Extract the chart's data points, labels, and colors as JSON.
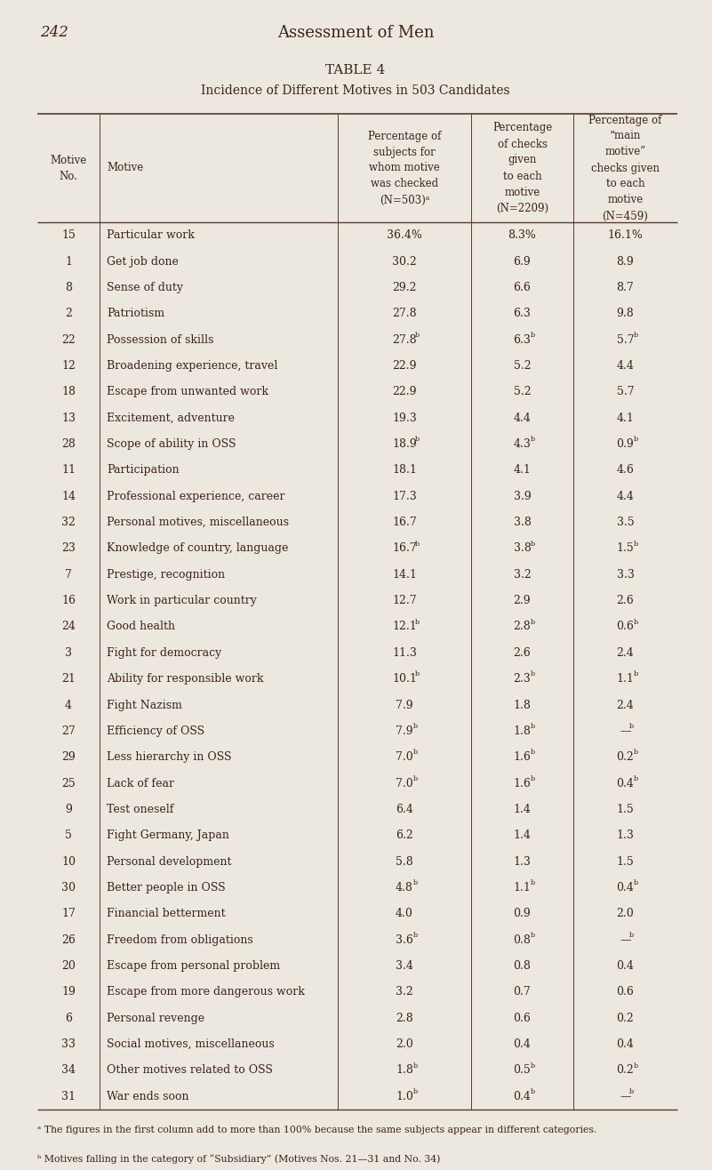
{
  "page_number": "242",
  "book_title": "Assessment of Men",
  "table_title": "TABLE 4",
  "table_subtitle": "Incidence of Different Motives in 503 Candidates",
  "header_col0": "Motive\nNo.",
  "header_col1": "Motive",
  "header_col2": "Percentage of\nsubjects for\nwhom motive\nwas checked\n(N=503)ᵃ",
  "header_col3": "Percentage\nof checks\ngiven\nto each\nmotive\n(N=2209)",
  "header_col4": "Percentage of\n“main\nmotive”\nchecks given\nto each\nmotive\n(N=459)",
  "rows": [
    [
      "15",
      "Particular work",
      "36.4%",
      "8.3%",
      "16.1%"
    ],
    [
      "1",
      "Get job done",
      "30.2",
      "6.9",
      "8.9"
    ],
    [
      "8",
      "Sense of duty",
      "29.2",
      "6.6",
      "8.7"
    ],
    [
      "2",
      "Patriotism",
      "27.8",
      "6.3",
      "9.8"
    ],
    [
      "22",
      "Possession of skills",
      "27.8b",
      "6.3b",
      "5.7b"
    ],
    [
      "12",
      "Broadening experience, travel",
      "22.9",
      "5.2",
      "4.4"
    ],
    [
      "18",
      "Escape from unwanted work",
      "22.9",
      "5.2",
      "5.7"
    ],
    [
      "13",
      "Excitement, adventure",
      "19.3",
      "4.4",
      "4.1"
    ],
    [
      "28",
      "Scope of ability in OSS",
      "18.9b",
      "4.3b",
      "0.9b"
    ],
    [
      "11",
      "Participation",
      "18.1",
      "4.1",
      "4.6"
    ],
    [
      "14",
      "Professional experience, career",
      "17.3",
      "3.9",
      "4.4"
    ],
    [
      "32",
      "Personal motives, miscellaneous",
      "16.7",
      "3.8",
      "3.5"
    ],
    [
      "23",
      "Knowledge of country, language",
      "16.7b",
      "3.8b",
      "1.5b"
    ],
    [
      "7",
      "Prestige, recognition",
      "14.1",
      "3.2",
      "3.3"
    ],
    [
      "16",
      "Work in particular country",
      "12.7",
      "2.9",
      "2.6"
    ],
    [
      "24",
      "Good health",
      "12.1b",
      "2.8b",
      "0.6b"
    ],
    [
      "3",
      "Fight for democracy",
      "11.3",
      "2.6",
      "2.4"
    ],
    [
      "21",
      "Ability for responsible work",
      "10.1b",
      "2.3b",
      "1.1b"
    ],
    [
      "4",
      "Fight Nazism",
      "7.9",
      "1.8",
      "2.4"
    ],
    [
      "27",
      "Efficiency of OSS",
      "7.9b",
      "1.8b",
      "—b"
    ],
    [
      "29",
      "Less hierarchy in OSS",
      "7.0b",
      "1.6b",
      "0.2b"
    ],
    [
      "25",
      "Lack of fear",
      "7.0b",
      "1.6b",
      "0.4b"
    ],
    [
      "9",
      "Test oneself",
      "6.4",
      "1.4",
      "1.5"
    ],
    [
      "5",
      "Fight Germany, Japan",
      "6.2",
      "1.4",
      "1.3"
    ],
    [
      "10",
      "Personal development",
      "5.8",
      "1.3",
      "1.5"
    ],
    [
      "30",
      "Better people in OSS",
      "4.8b",
      "1.1b",
      "0.4b"
    ],
    [
      "17",
      "Financial betterment",
      "4.0",
      "0.9",
      "2.0"
    ],
    [
      "26",
      "Freedom from obligations",
      "3.6b",
      "0.8b",
      "—b"
    ],
    [
      "20",
      "Escape from personal problem",
      "3.4",
      "0.8",
      "0.4"
    ],
    [
      "19",
      "Escape from more dangerous work",
      "3.2",
      "0.7",
      "0.6"
    ],
    [
      "6",
      "Personal revenge",
      "2.8",
      "0.6",
      "0.2"
    ],
    [
      "33",
      "Social motives, miscellaneous",
      "2.0",
      "0.4",
      "0.4"
    ],
    [
      "34",
      "Other motives related to OSS",
      "1.8b",
      "0.5b",
      "0.2b"
    ],
    [
      "31",
      "War ends soon",
      "1.0b",
      "0.4b",
      "—b"
    ]
  ],
  "footnote_a": "ᵃ The figures in the first column add to more than 100% because the same subjects appear in different categories.",
  "footnote_b": "ᵇ Motives falling in the category of “Subsidiary” (Motives Nos. 21—31 and No. 34)",
  "bg_color": "#ede8df",
  "text_color": "#3d2314",
  "line_color": "#5a3a2a"
}
